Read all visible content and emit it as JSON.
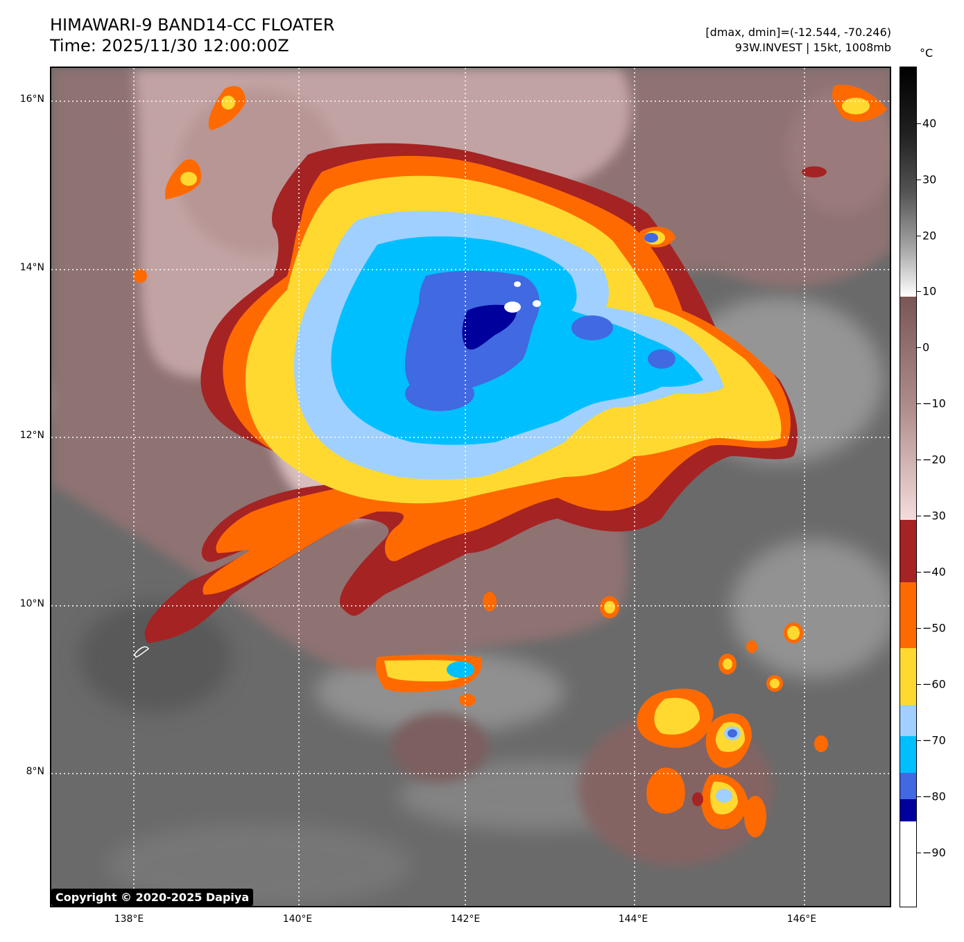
{
  "header": {
    "title_line1": "HIMAWARI-9 BAND14-CC FLOATER",
    "title_line2": "Time: 2025/11/30 12:00:00Z",
    "range_text": "[dmax, dmin]=(-12.544, -70.246)",
    "storm_text": "93W.INVEST | 15kt, 1008mb"
  },
  "map": {
    "lat_labels": [
      "16°N",
      "14°N",
      "12°N",
      "10°N",
      "8°N"
    ],
    "lon_labels": [
      "138°E",
      "140°E",
      "142°E",
      "144°E",
      "146°E"
    ],
    "copyright": "Copyright © 2020-2025 Dapiya"
  },
  "colorbar": {
    "unit": "°C",
    "tick_labels": [
      "40",
      "30",
      "20",
      "10",
      "0",
      "−10",
      "−20",
      "−30",
      "−40",
      "−50",
      "−60",
      "−70",
      "−80",
      "−90"
    ],
    "colors": {
      "black": "#000000",
      "white": "#ffffff",
      "brown_light": "#f5dcdc",
      "brown_dark": "#7a5656",
      "dark_red": "#a52323",
      "orange": "#ff6a00",
      "yellow": "#ffd92f",
      "light_blue": "#a0d0ff",
      "sky_blue": "#00bfff",
      "royal_blue": "#4169e1",
      "navy": "#00009c"
    }
  }
}
